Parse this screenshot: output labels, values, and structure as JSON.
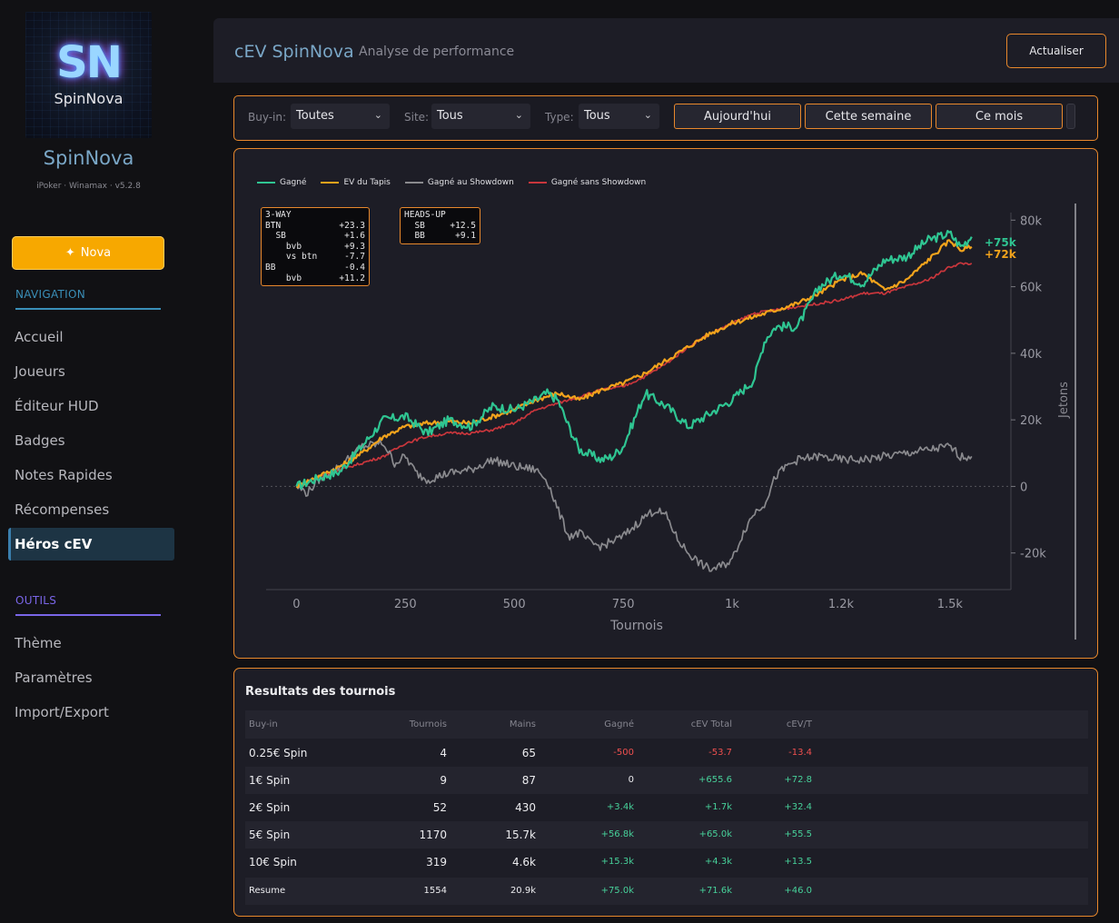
{
  "sidebar": {
    "logo_mono": "SN",
    "logo_word": "SpinNova",
    "brand": "SpinNova",
    "subtitle": "iPoker · Winamax · v5.2.8",
    "nova_button": "Nova",
    "navigation_title": "NAVIGATION",
    "nav_items": [
      "Accueil",
      "Joueurs",
      "Éditeur HUD",
      "Badges",
      "Notes Rapides",
      "Récompenses",
      "Héros cEV"
    ],
    "active_item": "Héros cEV",
    "tools_title": "OUTILS",
    "tool_items": [
      "Thème",
      "Paramètres",
      "Import/Export"
    ],
    "colors": {
      "navigation": "#3a8fb8",
      "tools": "#7a66e8",
      "accent": "#f7a800"
    }
  },
  "header": {
    "title": "cEV SpinNova",
    "subtitle": "Analyse de performance",
    "refresh_label": "Actualiser"
  },
  "filters": {
    "buyin_label": "Buy-in:",
    "buyin_value": "Toutes",
    "site_label": "Site:",
    "site_value": "Tous",
    "type_label": "Type:",
    "type_value": "Tous",
    "periods": [
      "Aujourd'hui",
      "Cette semaine",
      "Ce mois"
    ]
  },
  "chart_data": {
    "type": "line",
    "xlabel": "Tournois",
    "ylabel": "Jetons",
    "xlim": [
      -80,
      1640
    ],
    "ylim": [
      -31000,
      85000
    ],
    "x_ticks": [
      0,
      250,
      500,
      750,
      1000,
      1250,
      1500
    ],
    "x_tick_labels": [
      "0",
      "250",
      "500",
      "750",
      "1k",
      "1.2k",
      "1.5k"
    ],
    "y_ticks": [
      -20000,
      0,
      20000,
      40000,
      60000,
      80000
    ],
    "y_tick_labels": [
      "-20k",
      "0",
      "20k",
      "40k",
      "60k",
      "80k"
    ],
    "y_axis_side": "right",
    "legend_position": "top-left",
    "end_labels": [
      "+75k",
      "+72k"
    ],
    "series": [
      {
        "name": "Gagné",
        "color": "#2fc592",
        "x": [
          0,
          50,
          100,
          150,
          200,
          250,
          300,
          350,
          400,
          450,
          500,
          550,
          575,
          600,
          625,
          650,
          700,
          725,
          750,
          800,
          850,
          900,
          950,
          1000,
          1050,
          1075,
          1100,
          1150,
          1200,
          1250,
          1300,
          1350,
          1400,
          1450,
          1500,
          1525,
          1550
        ],
        "y": [
          0,
          2500,
          4500,
          12000,
          20000,
          21000,
          16000,
          20000,
          18000,
          24000,
          23000,
          26000,
          28000,
          26000,
          18000,
          11000,
          8000,
          9000,
          12000,
          28000,
          24000,
          18000,
          22000,
          26000,
          32000,
          44000,
          48000,
          48000,
          60000,
          64000,
          61000,
          68000,
          69000,
          74000,
          76000,
          72000,
          75000
        ]
      },
      {
        "name": "EV du Tapis",
        "color": "#f2a31c",
        "x": [
          0,
          50,
          100,
          150,
          200,
          250,
          300,
          350,
          400,
          450,
          500,
          550,
          600,
          650,
          700,
          750,
          800,
          850,
          900,
          950,
          1000,
          1050,
          1100,
          1150,
          1200,
          1250,
          1300,
          1350,
          1400,
          1450,
          1500,
          1525,
          1550
        ],
        "y": [
          0,
          3000,
          6000,
          10000,
          15000,
          18000,
          19000,
          19500,
          19000,
          21000,
          23000,
          26000,
          28000,
          26000,
          29000,
          31000,
          34000,
          38000,
          42000,
          46000,
          49000,
          51000,
          53000,
          55000,
          58000,
          62000,
          64000,
          59000,
          62000,
          68000,
          74000,
          71000,
          72000
        ]
      },
      {
        "name": "Gagné au Showdown",
        "color": "#8a8a8e",
        "x": [
          0,
          25,
          50,
          75,
          100,
          125,
          150,
          200,
          225,
          250,
          275,
          300,
          350,
          400,
          450,
          500,
          550,
          575,
          600,
          625,
          650,
          675,
          700,
          750,
          800,
          825,
          850,
          875,
          900,
          925,
          950,
          975,
          1000,
          1025,
          1050,
          1075,
          1100,
          1125,
          1150,
          1200,
          1250,
          1300,
          1350,
          1400,
          1450,
          1500,
          1525,
          1550
        ],
        "y": [
          0,
          -2000,
          2000,
          4000,
          6000,
          9000,
          12000,
          13000,
          7000,
          9000,
          4000,
          2000,
          4000,
          5000,
          8000,
          6000,
          5000,
          2000,
          -7000,
          -15000,
          -14000,
          -17000,
          -18000,
          -15000,
          -9000,
          -7000,
          -9000,
          -16000,
          -20000,
          -23000,
          -25000,
          -24000,
          -22000,
          -14000,
          -8000,
          -5000,
          3000,
          6000,
          8000,
          9000,
          8000,
          8000,
          9000,
          10000,
          11000,
          12000,
          9000,
          9000
        ]
      },
      {
        "name": "Gagné sans Showdown",
        "color": "#c9363c",
        "x": [
          0,
          50,
          100,
          150,
          200,
          250,
          300,
          350,
          400,
          450,
          500,
          550,
          600,
          650,
          700,
          750,
          800,
          850,
          900,
          950,
          1000,
          1050,
          1100,
          1150,
          1200,
          1250,
          1300,
          1350,
          1400,
          1450,
          1500,
          1525,
          1550
        ],
        "y": [
          0,
          3000,
          5000,
          7000,
          9000,
          13000,
          15000,
          16000,
          16000,
          17000,
          19000,
          23000,
          25000,
          27000,
          29000,
          30000,
          33000,
          37000,
          42000,
          46000,
          49000,
          52000,
          53000,
          54000,
          55000,
          56000,
          58000,
          58000,
          60000,
          62000,
          66000,
          67000,
          67000
        ]
      }
    ]
  },
  "info_3way": {
    "title": "3-WAY",
    "rows": [
      {
        "k": "BTN",
        "v": "+23.3"
      },
      {
        "k": "  SB",
        "v": "+1.6"
      },
      {
        "k": "    bvb",
        "v": "+9.3"
      },
      {
        "k": "    vs btn",
        "v": "-7.7"
      },
      {
        "k": "BB",
        "v": "-0.4"
      },
      {
        "k": "    bvb",
        "v": "+11.2"
      }
    ]
  },
  "info_hu": {
    "title": "HEADS-UP",
    "rows": [
      {
        "k": "  SB",
        "v": "+12.5"
      },
      {
        "k": "  BB",
        "v": "+9.1"
      }
    ]
  },
  "table": {
    "title": "Resultats des tournois",
    "headers": [
      "Buy-in",
      "Tournois",
      "Mains",
      "Gagné",
      "cEV Total",
      "cEV/T"
    ],
    "rows": [
      {
        "buyin": "0.25€ Spin",
        "tournois": "4",
        "mains": "65",
        "gagne": "-500",
        "cev_total": "-53.7",
        "cev_t": "-13.4"
      },
      {
        "buyin": "1€ Spin",
        "tournois": "9",
        "mains": "87",
        "gagne": "0",
        "cev_total": "+655.6",
        "cev_t": "+72.8"
      },
      {
        "buyin": "2€ Spin",
        "tournois": "52",
        "mains": "430",
        "gagne": "+3.4k",
        "cev_total": "+1.7k",
        "cev_t": "+32.4"
      },
      {
        "buyin": "5€ Spin",
        "tournois": "1170",
        "mains": "15.7k",
        "gagne": "+56.8k",
        "cev_total": "+65.0k",
        "cev_t": "+55.5"
      },
      {
        "buyin": "10€ Spin",
        "tournois": "319",
        "mains": "4.6k",
        "gagne": "+15.3k",
        "cev_total": "+4.3k",
        "cev_t": "+13.5"
      }
    ],
    "summary": {
      "buyin": "Resume",
      "tournois": "1554",
      "mains": "20.9k",
      "gagne": "+75.0k",
      "cev_total": "+71.6k",
      "cev_t": "+46.0"
    }
  }
}
